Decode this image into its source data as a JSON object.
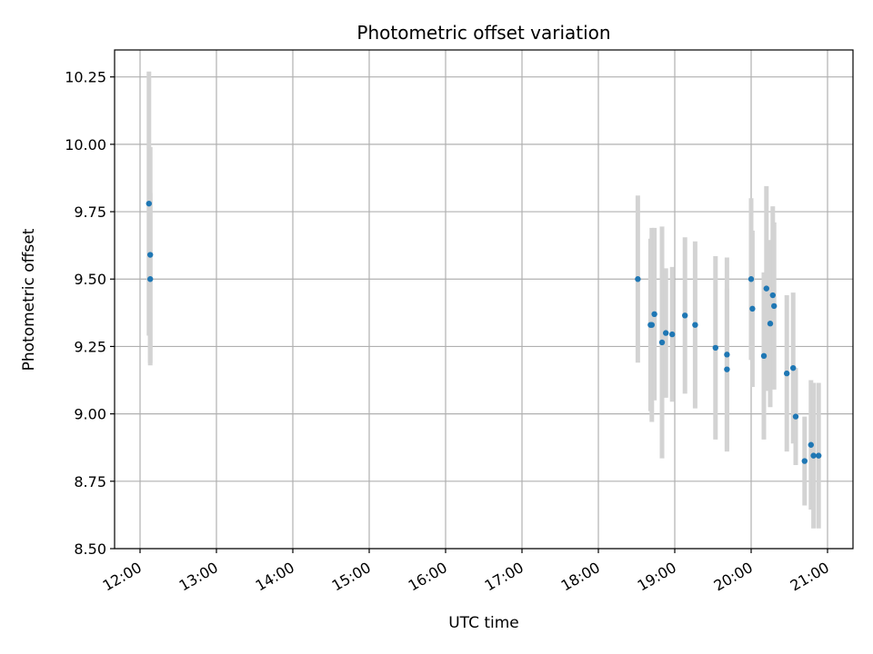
{
  "chart_data": {
    "type": "scatter",
    "title": "Photometric offset variation",
    "xlabel": "UTC time",
    "ylabel": "Photometric offset",
    "xlim": [
      "11:40",
      "21:20"
    ],
    "ylim": [
      8.5,
      10.35
    ],
    "xticks": [
      "12:00",
      "13:00",
      "14:00",
      "15:00",
      "16:00",
      "17:00",
      "18:00",
      "19:00",
      "20:00",
      "21:00"
    ],
    "yticks": [
      "8.50",
      "8.75",
      "9.00",
      "9.25",
      "9.50",
      "9.75",
      "10.00",
      "10.25"
    ],
    "grid": true,
    "error_bar_color": "#d3d3d3",
    "point_color": "#1f77b4",
    "points": [
      {
        "x": "12:07",
        "y": 9.78,
        "err": 0.49
      },
      {
        "x": "12:08",
        "y": 9.59,
        "err": 0.4
      },
      {
        "x": "12:08",
        "y": 9.5,
        "err": 0.32
      },
      {
        "x": "18:31",
        "y": 9.5,
        "err": 0.31
      },
      {
        "x": "18:41",
        "y": 9.33,
        "err": 0.32
      },
      {
        "x": "18:42",
        "y": 9.33,
        "err": 0.36
      },
      {
        "x": "18:44",
        "y": 9.37,
        "err": 0.32
      },
      {
        "x": "18:50",
        "y": 9.265,
        "err": 0.43
      },
      {
        "x": "18:53",
        "y": 9.3,
        "err": 0.24
      },
      {
        "x": "18:58",
        "y": 9.295,
        "err": 0.25
      },
      {
        "x": "19:08",
        "y": 9.365,
        "err": 0.29
      },
      {
        "x": "19:16",
        "y": 9.33,
        "err": 0.31
      },
      {
        "x": "19:32",
        "y": 9.245,
        "err": 0.34
      },
      {
        "x": "19:41",
        "y": 9.22,
        "err": 0.36
      },
      {
        "x": "19:41",
        "y": 9.165,
        "err": 0.3
      },
      {
        "x": "20:00",
        "y": 9.5,
        "err": 0.3
      },
      {
        "x": "20:01",
        "y": 9.39,
        "err": 0.29
      },
      {
        "x": "20:10",
        "y": 9.215,
        "err": 0.31
      },
      {
        "x": "20:12",
        "y": 9.465,
        "err": 0.38
      },
      {
        "x": "20:15",
        "y": 9.335,
        "err": 0.31
      },
      {
        "x": "20:17",
        "y": 9.44,
        "err": 0.33
      },
      {
        "x": "20:18",
        "y": 9.4,
        "err": 0.31
      },
      {
        "x": "20:28",
        "y": 9.15,
        "err": 0.29
      },
      {
        "x": "20:33",
        "y": 9.17,
        "err": 0.28
      },
      {
        "x": "20:35",
        "y": 8.99,
        "err": 0.18
      },
      {
        "x": "20:42",
        "y": 8.825,
        "err": 0.165
      },
      {
        "x": "20:47",
        "y": 8.885,
        "err": 0.24
      },
      {
        "x": "20:49",
        "y": 8.845,
        "err": 0.27
      },
      {
        "x": "20:53",
        "y": 8.845,
        "err": 0.27
      }
    ]
  }
}
